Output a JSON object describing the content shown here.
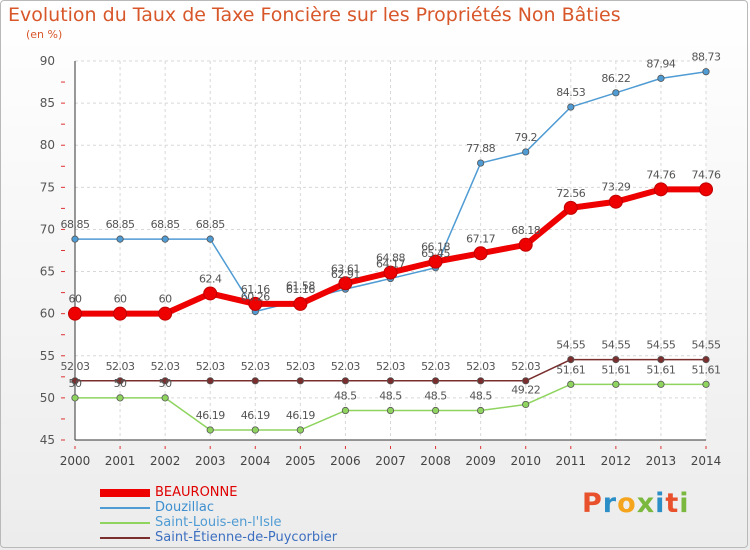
{
  "header": {
    "title": "Evolution du Taux de Taxe Foncière sur les Propriétés Non Bâties",
    "unit": "(en %)"
  },
  "brand": {
    "letters": [
      "P",
      "r",
      "o",
      "x",
      "i",
      "t",
      "i"
    ],
    "colors": [
      "#e8512c",
      "#2c8ec7",
      "#f4a51d",
      "#7ab83e",
      "#2c8ec7",
      "#e8512c",
      "#7ab83e"
    ]
  },
  "chart_data": {
    "type": "line",
    "x": [
      2000,
      2001,
      2002,
      2003,
      2004,
      2005,
      2006,
      2007,
      2008,
      2009,
      2010,
      2011,
      2012,
      2013,
      2014
    ],
    "ylim": [
      45,
      90
    ],
    "yticks": [
      45,
      50,
      55,
      60,
      65,
      70,
      75,
      80,
      85,
      90
    ],
    "grid": true,
    "legend_position": "bottom-left",
    "series": [
      {
        "name": "BEAURONNE",
        "color": "#ee0000",
        "values": [
          60,
          60,
          60,
          62.4,
          61.16,
          61.16,
          63.61,
          64.88,
          66.18,
          67.17,
          68.18,
          72.56,
          73.29,
          74.76,
          74.76
        ],
        "labels": [
          "60",
          "60",
          "60",
          "62.4",
          "61.16",
          "61.16",
          "63.61",
          "64.88",
          "66.18",
          "67.17",
          "68.18",
          "72.56",
          "73.29",
          "74.76",
          "74.76"
        ]
      },
      {
        "name": "Douzillac",
        "color": "#4f9bd3",
        "values": [
          68.85,
          68.85,
          68.85,
          68.85,
          60.26,
          61.58,
          62.91,
          64.17,
          65.45,
          77.88,
          79.2,
          84.53,
          86.22,
          87.94,
          88.73
        ],
        "labels": [
          "68.85",
          "68.85",
          "68.85",
          "68.85",
          "60.26",
          "61.58",
          "62.91",
          "64.17",
          "65.45",
          "77.88",
          "79.2",
          "84.53",
          "86.22",
          "87.94",
          "88.73"
        ]
      },
      {
        "name": "Saint-Louis-en-l'Isle",
        "color": "#8fd45f",
        "values": [
          50,
          50,
          50,
          46.19,
          46.19,
          46.19,
          48.5,
          48.5,
          48.5,
          48.5,
          49.22,
          51.61,
          51.61,
          51.61,
          51.61
        ],
        "labels": [
          "50",
          "50",
          "50",
          "46.19",
          "46.19",
          "46.19",
          "48.5",
          "48.5",
          "48.5",
          "48.5",
          "49.22",
          "51.61",
          "51.61",
          "51.61",
          "51.61"
        ]
      },
      {
        "name": "Saint-Étienne-de-Puycorbier",
        "color": "#7a2e2e",
        "values": [
          52.03,
          52.03,
          52.03,
          52.03,
          52.03,
          52.03,
          52.03,
          52.03,
          52.03,
          52.03,
          52.03,
          54.55,
          54.55,
          54.55,
          54.55
        ],
        "labels": [
          "52.03",
          "52.03",
          "52.03",
          "52.03",
          "52.03",
          "52.03",
          "52.03",
          "52.03",
          "52.03",
          "52.03",
          "52.03",
          "54.55",
          "54.55",
          "54.55",
          "54.55"
        ]
      }
    ]
  }
}
